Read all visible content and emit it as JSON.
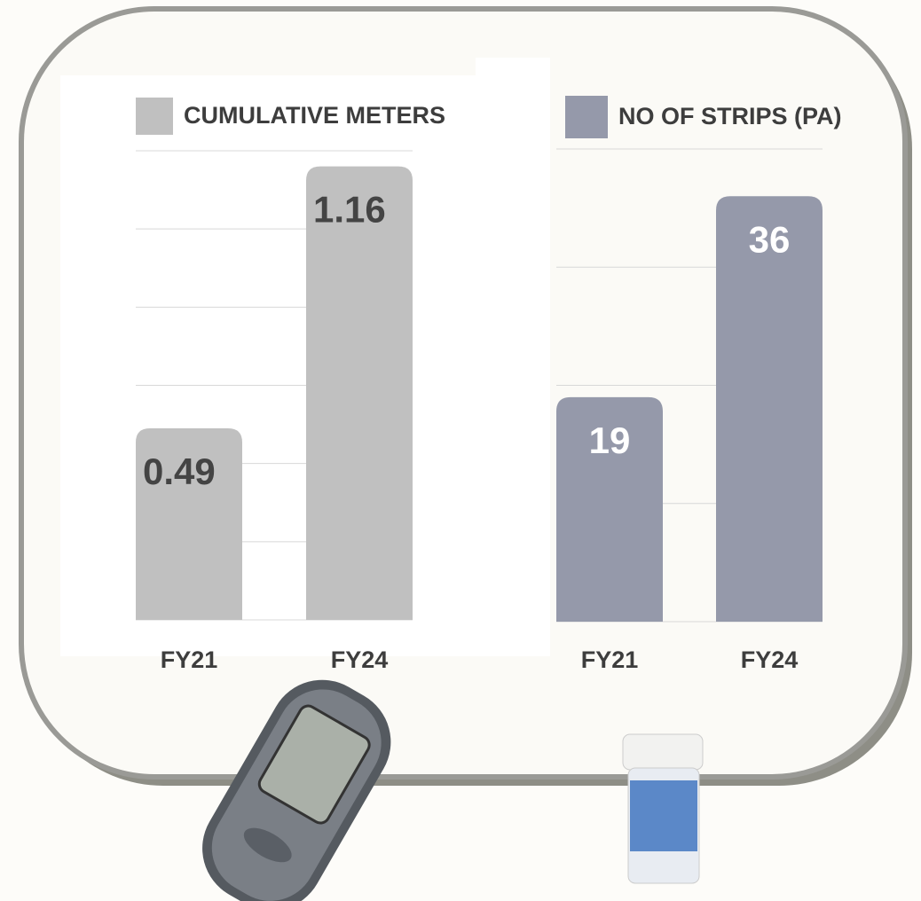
{
  "chart_data": [
    {
      "type": "bar",
      "series": [
        {
          "name": "CUMULATIVE METERS",
          "color": "#c0c0c0",
          "values": [
            0.49,
            1.16
          ]
        }
      ],
      "categories": [
        "FY21",
        "FY24"
      ],
      "ylim": [
        0,
        1.2
      ],
      "yticks": [
        0,
        0.2,
        0.4,
        0.6,
        0.8,
        1,
        1.2
      ],
      "grid": true,
      "value_label_color": "#444444"
    },
    {
      "type": "bar",
      "series": [
        {
          "name": "NO OF STRIPS (PA)",
          "color": "#9599aa",
          "values": [
            19,
            36
          ]
        }
      ],
      "categories": [
        "FY21",
        "FY24"
      ],
      "ylim": [
        0,
        40
      ],
      "yticks": [
        0,
        10,
        20,
        30,
        40
      ],
      "grid": true,
      "value_label_color": "#ffffff"
    }
  ]
}
